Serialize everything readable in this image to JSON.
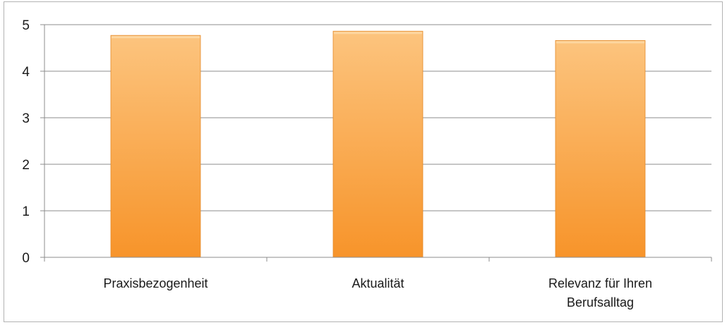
{
  "chart_data": {
    "type": "bar",
    "title": "",
    "xlabel": "",
    "ylabel": "",
    "categories": [
      "Praxisbezogenheit",
      "Aktualität",
      "Relevanz für Ihren Berufsalltag"
    ],
    "category_lines": [
      [
        "Praxisbezogenheit"
      ],
      [
        "Aktualität"
      ],
      [
        "Relevanz für Ihren",
        "Berufsalltag"
      ]
    ],
    "values": [
      4.77,
      4.86,
      4.66
    ],
    "ylim": [
      0,
      5
    ],
    "yticks": [
      "0",
      "1",
      "2",
      "3",
      "4",
      "5"
    ],
    "grid": true,
    "legend": "none",
    "colors": {
      "bar_top": "#fcc47e",
      "bar_bottom": "#f7942a",
      "bar_edge": "#e48a2a",
      "grid": "#8c8c8c",
      "axis": "#8c8c8c"
    }
  }
}
